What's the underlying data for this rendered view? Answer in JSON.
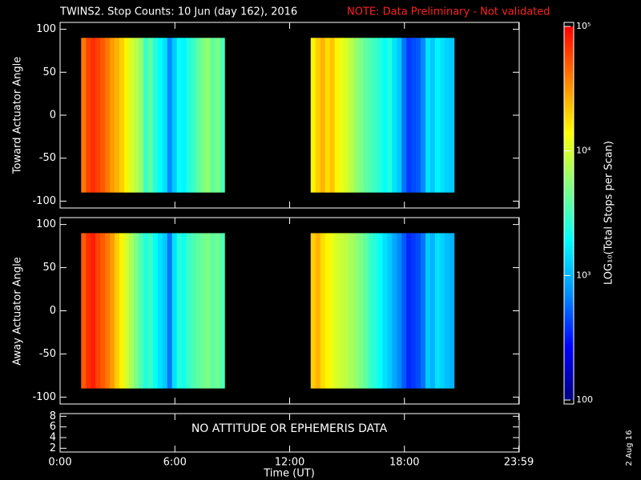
{
  "chart_data": [
    {
      "type": "heatmap",
      "title": "TWINS2. Stop Counts: 10 Jun (day 162), 2016",
      "note": "NOTE: Data Preliminary - Not validated",
      "ylabel": "Toward Actuator Angle",
      "ylim": [
        -108,
        108
      ],
      "yticks": [
        100,
        50,
        0,
        -50,
        -100
      ],
      "yrange": [
        -90,
        90
      ],
      "segments": [
        {
          "bins": [
            1.1,
            1.35,
            1.6,
            1.85,
            2.1,
            2.35,
            2.6,
            2.85,
            3.1,
            3.35,
            3.6,
            3.85,
            4.1,
            4.35,
            4.6,
            4.85,
            5.1,
            5.35,
            5.6,
            5.85,
            6.1,
            6.35,
            6.6,
            6.85,
            7.1,
            7.35,
            7.6,
            7.85,
            8.1,
            8.35,
            8.6
          ],
          "values": [
            40000,
            60000,
            70000,
            60000,
            50000,
            40000,
            30000,
            25000,
            20000,
            15000,
            10000,
            8000,
            6000,
            3000,
            4000,
            2500,
            2000,
            1500,
            700,
            1200,
            2000,
            1800,
            2500,
            3000,
            4000,
            5000,
            6000,
            4000,
            5000,
            3500
          ]
        },
        {
          "bins": [
            13.1,
            13.35,
            13.6,
            13.85,
            14.1,
            14.35,
            14.6,
            14.85,
            15.1,
            15.35,
            15.6,
            15.85,
            16.1,
            16.35,
            16.6,
            16.85,
            17.1,
            17.35,
            17.6,
            17.85,
            18.1,
            18.35,
            18.6,
            18.85,
            19.1,
            19.35,
            19.6,
            19.85,
            20.1,
            20.35,
            20.6
          ],
          "values": [
            15000,
            20000,
            25000,
            18000,
            22000,
            15000,
            12000,
            10000,
            8000,
            6000,
            5000,
            4000,
            3500,
            3000,
            2500,
            2000,
            2500,
            1500,
            1200,
            600,
            400,
            450,
            500,
            700,
            1500,
            1200,
            1800,
            1500,
            1300,
            1200
          ]
        }
      ]
    },
    {
      "type": "heatmap",
      "ylabel": "Away Actuator Angle",
      "ylim": [
        -108,
        108
      ],
      "yticks": [
        100,
        50,
        0,
        -50,
        -100
      ],
      "yrange": [
        -90,
        90
      ],
      "segments": [
        {
          "bins": [
            1.1,
            1.35,
            1.6,
            1.85,
            2.1,
            2.35,
            2.6,
            2.85,
            3.1,
            3.35,
            3.6,
            3.85,
            4.1,
            4.35,
            4.6,
            4.85,
            5.1,
            5.35,
            5.6,
            5.85,
            6.1,
            6.35,
            6.6,
            6.85,
            7.1,
            7.35,
            7.6,
            7.85,
            8.1,
            8.35,
            8.6
          ],
          "values": [
            50000,
            70000,
            80000,
            60000,
            50000,
            40000,
            30000,
            20000,
            15000,
            10000,
            7000,
            5000,
            3500,
            2500,
            3000,
            2000,
            1500,
            1200,
            600,
            1500,
            2500,
            2200,
            3000,
            3500,
            4000,
            4500,
            5000,
            4000,
            4500,
            3500
          ]
        },
        {
          "bins": [
            13.1,
            13.35,
            13.6,
            13.85,
            14.1,
            14.35,
            14.6,
            14.85,
            15.1,
            15.35,
            15.6,
            15.85,
            16.1,
            16.35,
            16.6,
            16.85,
            17.1,
            17.35,
            17.6,
            17.85,
            18.1,
            18.35,
            18.6,
            18.85,
            19.1,
            19.35,
            19.6,
            19.85,
            20.1,
            20.35,
            20.6
          ],
          "values": [
            20000,
            25000,
            18000,
            15000,
            12000,
            10000,
            9000,
            8000,
            7000,
            6000,
            5000,
            4000,
            3000,
            2500,
            2000,
            1500,
            1200,
            900,
            700,
            500,
            350,
            400,
            450,
            600,
            1200,
            1000,
            1500,
            1300,
            1100,
            1000
          ]
        }
      ]
    },
    {
      "type": "empty",
      "annotation": "NO ATTITUDE OR EPHEMERIS DATA",
      "ylim": [
        1.3,
        8.5
      ],
      "yticks": [
        2,
        4,
        6,
        8
      ],
      "xlabel": "Time (UT)",
      "xlim": [
        0,
        24
      ],
      "xticks": [
        {
          "value": 0,
          "label": "0:00"
        },
        {
          "value": 6,
          "label": "6:00"
        },
        {
          "value": 12,
          "label": "12:00"
        },
        {
          "value": 18,
          "label": "18:00"
        },
        {
          "value": 23.98,
          "label": "23:59"
        }
      ]
    }
  ],
  "colorbar": {
    "label": "LOG₁₀(Total Stops per Scan)",
    "log": true,
    "lim": [
      100,
      100000
    ],
    "ticks": [
      {
        "value": 100000,
        "label": "10⁵"
      },
      {
        "value": 10000,
        "label": "10⁴"
      },
      {
        "value": 1000,
        "label": "10³"
      },
      100
    ],
    "colormap": [
      "#000080",
      "#0000ff",
      "#0090ff",
      "#00ffff",
      "#80ff80",
      "#ffff00",
      "#ff8000",
      "#ff0000"
    ]
  },
  "date_stamp": "2 Aug 16"
}
